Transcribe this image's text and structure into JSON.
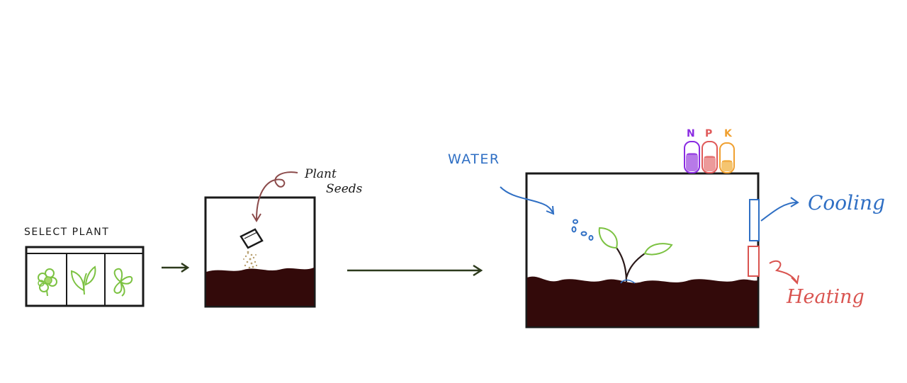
{
  "labels": {
    "select_plant": "SELECT PLANT",
    "plant_seeds_line1": "Plant",
    "plant_seeds_line2": "Seeds",
    "water": "WATER",
    "cooling": "Cooling",
    "heating": "Heating"
  },
  "npk": {
    "n": "N",
    "p": "P",
    "k": "K"
  },
  "plant_options": [
    "lettuce-icon",
    "sprout-icon",
    "clover-icon"
  ],
  "colors": {
    "soil": "#330a0a",
    "outline": "#1a1a1a",
    "plant_green": "#7cc242",
    "water_blue": "#2f6fc4",
    "heating_red": "#d9534f",
    "seed_arrow": "#8b4a4a",
    "flow_arrow": "#2d3a1c",
    "n_purple": "#8a2be2",
    "p_red": "#e05a5a",
    "k_orange": "#f0a030"
  }
}
